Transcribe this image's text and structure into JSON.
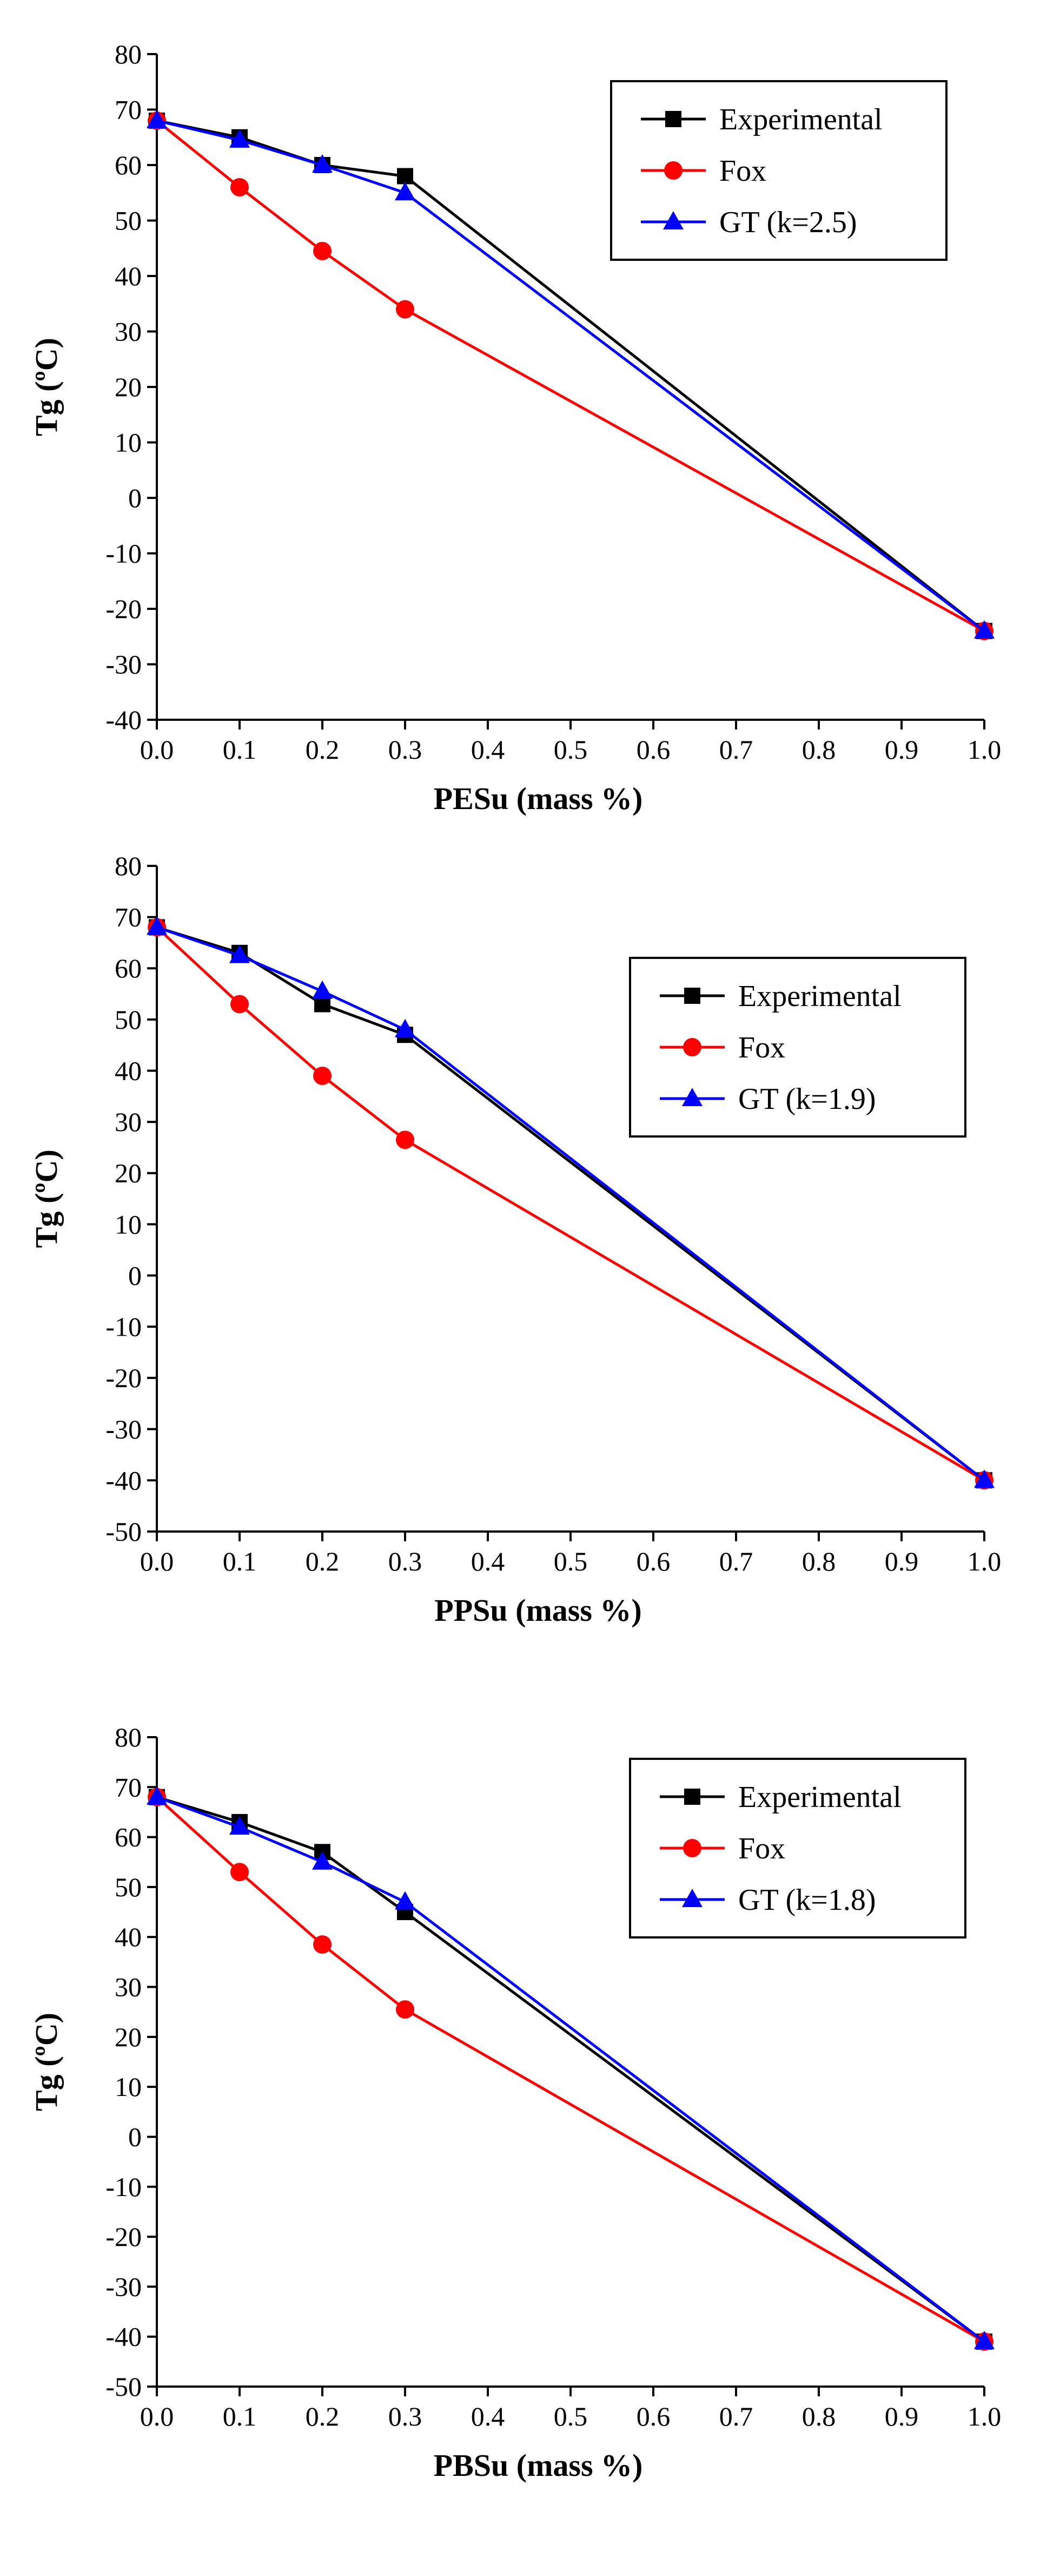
{
  "chart_data": [
    {
      "type": "line",
      "title": "",
      "xlabel": "PESu (mass %)",
      "ylabel": "Tg (ºC)",
      "xlim": [
        0.0,
        1.0
      ],
      "ylim": [
        -40,
        80
      ],
      "xticks": [
        "0.0",
        "0.1",
        "0.2",
        "0.3",
        "0.4",
        "0.5",
        "0.6",
        "0.7",
        "0.8",
        "0.9",
        "1.0"
      ],
      "yticks": [
        "-40",
        "-30",
        "-20",
        "-10",
        "0",
        "10",
        "20",
        "30",
        "40",
        "50",
        "60",
        "70",
        "80"
      ],
      "legend_position": "top-right",
      "grid": false,
      "series": [
        {
          "name": "Experimental",
          "color": "#000000",
          "marker": "square",
          "x": [
            0.0,
            0.1,
            0.2,
            0.3,
            1.0
          ],
          "y": [
            68,
            65,
            60,
            58,
            -24
          ]
        },
        {
          "name": "Fox",
          "color": "#ff0000",
          "marker": "circle",
          "x": [
            0.0,
            0.1,
            0.2,
            0.3,
            1.0
          ],
          "y": [
            68,
            56,
            44.5,
            34,
            -24
          ]
        },
        {
          "name": "GT (k=2.5)",
          "color": "#0000ff",
          "marker": "triangle",
          "x": [
            0.0,
            0.1,
            0.2,
            0.3,
            1.0
          ],
          "y": [
            68,
            64.5,
            60,
            55,
            -24
          ]
        }
      ]
    },
    {
      "type": "line",
      "title": "",
      "xlabel": "PPSu (mass %)",
      "ylabel": "Tg (ºC)",
      "xlim": [
        0.0,
        1.0
      ],
      "ylim": [
        -50,
        80
      ],
      "xticks": [
        "0.0",
        "0.1",
        "0.2",
        "0.3",
        "0.4",
        "0.5",
        "0.6",
        "0.7",
        "0.8",
        "0.9",
        "1.0"
      ],
      "yticks": [
        "-50",
        "-40",
        "-30",
        "-20",
        "-10",
        "0",
        "10",
        "20",
        "30",
        "40",
        "50",
        "60",
        "70",
        "80"
      ],
      "legend_position": "top-right",
      "grid": false,
      "series": [
        {
          "name": "Experimental",
          "color": "#000000",
          "marker": "square",
          "x": [
            0.0,
            0.1,
            0.2,
            0.3,
            1.0
          ],
          "y": [
            68,
            63,
            53,
            47,
            -40
          ]
        },
        {
          "name": "Fox",
          "color": "#ff0000",
          "marker": "circle",
          "x": [
            0.0,
            0.1,
            0.2,
            0.3,
            1.0
          ],
          "y": [
            68,
            53,
            39,
            26.5,
            -40
          ]
        },
        {
          "name": "GT (k=1.9)",
          "color": "#0000ff",
          "marker": "triangle",
          "x": [
            0.0,
            0.1,
            0.2,
            0.3,
            1.0
          ],
          "y": [
            68,
            62.5,
            55.5,
            48,
            -40
          ]
        }
      ]
    },
    {
      "type": "line",
      "title": "",
      "xlabel": "PBSu (mass %)",
      "ylabel": "Tg (ºC)",
      "xlim": [
        0.0,
        1.0
      ],
      "ylim": [
        -50,
        80
      ],
      "xticks": [
        "0.0",
        "0.1",
        "0.2",
        "0.3",
        "0.4",
        "0.5",
        "0.6",
        "0.7",
        "0.8",
        "0.9",
        "1.0"
      ],
      "yticks": [
        "-50",
        "-40",
        "-30",
        "-20",
        "-10",
        "0",
        "10",
        "20",
        "30",
        "40",
        "50",
        "60",
        "70",
        "80"
      ],
      "legend_position": "top-right",
      "grid": false,
      "series": [
        {
          "name": "Experimental",
          "color": "#000000",
          "marker": "square",
          "x": [
            0.0,
            0.1,
            0.2,
            0.3,
            1.0
          ],
          "y": [
            68,
            63,
            57,
            45,
            -41
          ]
        },
        {
          "name": "Fox",
          "color": "#ff0000",
          "marker": "circle",
          "x": [
            0.0,
            0.1,
            0.2,
            0.3,
            1.0
          ],
          "y": [
            68,
            53,
            38.5,
            25.5,
            -41
          ]
        },
        {
          "name": "GT (k=1.8)",
          "color": "#0000ff",
          "marker": "triangle",
          "x": [
            0.0,
            0.1,
            0.2,
            0.3,
            1.0
          ],
          "y": [
            68,
            62,
            55,
            47,
            -41
          ]
        }
      ]
    }
  ]
}
